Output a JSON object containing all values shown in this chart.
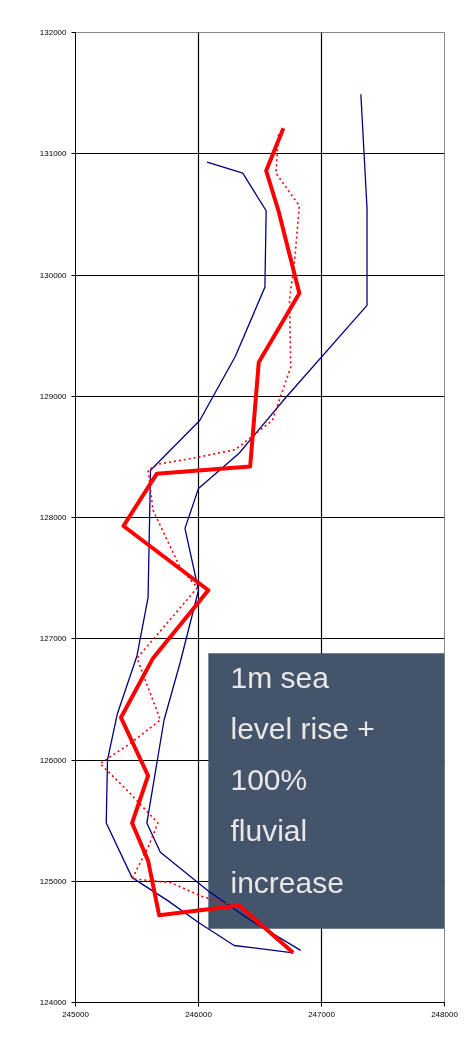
{
  "chart_data": {
    "type": "line",
    "xlim": [
      245000,
      248000
    ],
    "ylim": [
      124000,
      132000
    ],
    "xticks": [
      245000,
      246000,
      247000,
      248000
    ],
    "yticks": [
      124000,
      125000,
      126000,
      127000,
      128000,
      129000,
      130000,
      131000,
      132000
    ],
    "grid": true,
    "annotations": [
      "1m sea level rise + 100% fluvial increase"
    ],
    "series": [
      {
        "color": "#000080",
        "line_style": "solid",
        "x": [
          246070,
          246360,
          246550,
          246540,
          246300,
          246010,
          245610,
          245590,
          245500,
          245340,
          245260,
          245250,
          245460,
          245750,
          246000,
          246290,
          246770
        ],
        "values": [
          130930,
          130840,
          130530,
          129900,
          129330,
          128800,
          128390,
          127340,
          126860,
          126380,
          126000,
          125480,
          125030,
          124840,
          124660,
          124470,
          124410
        ]
      },
      {
        "color": "#000080",
        "line_style": "solid",
        "x": [
          247320,
          247370,
          247370,
          246710,
          246330,
          246000,
          245890,
          246000,
          245850,
          245720,
          245580,
          245690,
          246080,
          246420,
          246830
        ],
        "values": [
          131490,
          130550,
          129750,
          128990,
          128530,
          128240,
          127910,
          127400,
          126800,
          126330,
          125480,
          125240,
          124920,
          124680,
          124430
        ]
      },
      {
        "color": "#ff0000",
        "line_style": "dotted",
        "x": [
          246650,
          246630,
          246820,
          246780,
          246740,
          246750,
          246600,
          246300,
          245960,
          245670,
          245590,
          245630,
          245850,
          245990,
          245670,
          245500,
          245690,
          245450,
          245200,
          245420,
          245670,
          245590,
          245460,
          245770,
          246040,
          246350
        ],
        "values": [
          131160,
          130840,
          130570,
          130100,
          129800,
          129240,
          128800,
          128560,
          128490,
          128440,
          128390,
          128060,
          127590,
          127420,
          127040,
          126840,
          126330,
          126140,
          125970,
          125750,
          125480,
          125280,
          125020,
          124990,
          124870,
          124780
        ]
      },
      {
        "color": "#ff0000",
        "line_style": "solid",
        "x": [
          246690,
          246550,
          246650,
          246820,
          246490,
          246420,
          245660,
          245390,
          246080,
          245630,
          245370,
          245590,
          245460,
          245590,
          245680,
          246330,
          246770
        ],
        "values": [
          131210,
          130860,
          130530,
          129850,
          129280,
          128420,
          128360,
          127930,
          127400,
          126840,
          126350,
          125870,
          125480,
          125170,
          124720,
          124800,
          124410
        ]
      }
    ]
  }
}
